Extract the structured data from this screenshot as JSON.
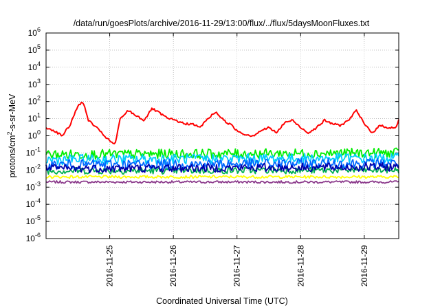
{
  "chart_data": {
    "type": "line",
    "title": "/data/run/goesPlots/archive/2016-11-29/13:00/flux/../flux/5daysMoonFluxes.txt",
    "xlabel": "Coordinated Universal Time (UTC)",
    "ylabel": {
      "base": "protons/cm",
      "sup": "2",
      "rest": "-s-sr-MeV"
    },
    "yscale": "log",
    "ylim": [
      1e-06,
      1000000.0
    ],
    "xlim": [
      "2016-11-24T00:00",
      "2016-11-29T13:00"
    ],
    "grid": true,
    "legend": "none",
    "y_ticks": [
      {
        "base": "10",
        "exp": "-6",
        "value": 1e-06
      },
      {
        "base": "10",
        "exp": "-5",
        "value": 1e-05
      },
      {
        "base": "10",
        "exp": "-4",
        "value": 0.0001
      },
      {
        "base": "10",
        "exp": "-3",
        "value": 0.001
      },
      {
        "base": "10",
        "exp": "-2",
        "value": 0.01
      },
      {
        "base": "10",
        "exp": "-1",
        "value": 0.1
      },
      {
        "base": "10",
        "exp": "0",
        "value": 1
      },
      {
        "base": "10",
        "exp": "1",
        "value": 10
      },
      {
        "base": "10",
        "exp": "2",
        "value": 100
      },
      {
        "base": "10",
        "exp": "3",
        "value": 1000
      },
      {
        "base": "10",
        "exp": "4",
        "value": 10000
      },
      {
        "base": "10",
        "exp": "5",
        "value": 100000
      },
      {
        "base": "10",
        "exp": "6",
        "value": 1000000
      }
    ],
    "x_ticks": [
      {
        "label": "2016-11-25",
        "value": "2016-11-25T00:00"
      },
      {
        "label": "2016-11-26",
        "value": "2016-11-26T00:00"
      },
      {
        "label": "2016-11-27",
        "value": "2016-11-27T00:00"
      },
      {
        "label": "2016-11-28",
        "value": "2016-11-28T00:00"
      },
      {
        "label": "2016-11-29",
        "value": "2016-11-29T00:00"
      }
    ],
    "series": [
      {
        "color": "#ff0000",
        "x": [
          "2016-11-24T00:00",
          "2016-11-24T03:00",
          "2016-11-24T06:00",
          "2016-11-24T09:00",
          "2016-11-24T12:00",
          "2016-11-24T14:00",
          "2016-11-24T16:00",
          "2016-11-24T19:00",
          "2016-11-24T22:00",
          "2016-11-25T00:00",
          "2016-11-25T02:00",
          "2016-11-25T04:00",
          "2016-11-25T07:00",
          "2016-11-25T10:00",
          "2016-11-25T13:00",
          "2016-11-25T16:00",
          "2016-11-25T19:00",
          "2016-11-25T22:00",
          "2016-11-26T01:00",
          "2016-11-26T04:00",
          "2016-11-26T07:00",
          "2016-11-26T10:00",
          "2016-11-26T13:00",
          "2016-11-26T16:00",
          "2016-11-26T19:00",
          "2016-11-26T22:00",
          "2016-11-27T00:00",
          "2016-11-27T03:00",
          "2016-11-27T06:00",
          "2016-11-27T09:00",
          "2016-11-27T12:00",
          "2016-11-27T15:00",
          "2016-11-27T18:00",
          "2016-11-27T21:00",
          "2016-11-28T00:00",
          "2016-11-28T03:00",
          "2016-11-28T06:00",
          "2016-11-28T09:00",
          "2016-11-28T12:00",
          "2016-11-28T15:00",
          "2016-11-28T18:00",
          "2016-11-28T21:00",
          "2016-11-29T00:00",
          "2016-11-29T03:00",
          "2016-11-29T06:00",
          "2016-11-29T09:00",
          "2016-11-29T12:00",
          "2016-11-29T13:00"
        ],
        "values": [
          3,
          2,
          1,
          4,
          60,
          90,
          8,
          3,
          1,
          0.5,
          0.3,
          10,
          30,
          15,
          8,
          40,
          20,
          10,
          8,
          5,
          5,
          3,
          10,
          25,
          8,
          4,
          2,
          1.2,
          1,
          2,
          3,
          1.5,
          6,
          8,
          3,
          1.5,
          3,
          8,
          5,
          4,
          8,
          30,
          5,
          1.5,
          4,
          3,
          3,
          8
        ]
      },
      {
        "color": "#00ee00",
        "x": [
          "2016-11-24T00:00",
          "2016-11-29T13:00"
        ],
        "values": [
          0.08,
          0.1
        ]
      },
      {
        "color": "#00ccff",
        "x": [
          "2016-11-24T00:00",
          "2016-11-29T13:00"
        ],
        "values": [
          0.04,
          0.05
        ]
      },
      {
        "color": "#0066ff",
        "x": [
          "2016-11-24T00:00",
          "2016-11-29T13:00"
        ],
        "values": [
          0.02,
          0.025
        ]
      },
      {
        "color": "#0000aa",
        "x": [
          "2016-11-24T00:00",
          "2016-11-29T13:00"
        ],
        "values": [
          0.012,
          0.015
        ]
      },
      {
        "color": "#00b050",
        "x": [
          "2016-11-24T00:00",
          "2016-11-29T13:00"
        ],
        "values": [
          0.009,
          0.01
        ]
      },
      {
        "color": "#ffff00",
        "x": [
          "2016-11-24T00:00",
          "2016-11-29T13:00"
        ],
        "values": [
          0.004,
          0.004
        ]
      },
      {
        "color": "#8b3a8b",
        "x": [
          "2016-11-24T00:00",
          "2016-11-29T13:00"
        ],
        "values": [
          0.002,
          0.002
        ]
      }
    ]
  }
}
